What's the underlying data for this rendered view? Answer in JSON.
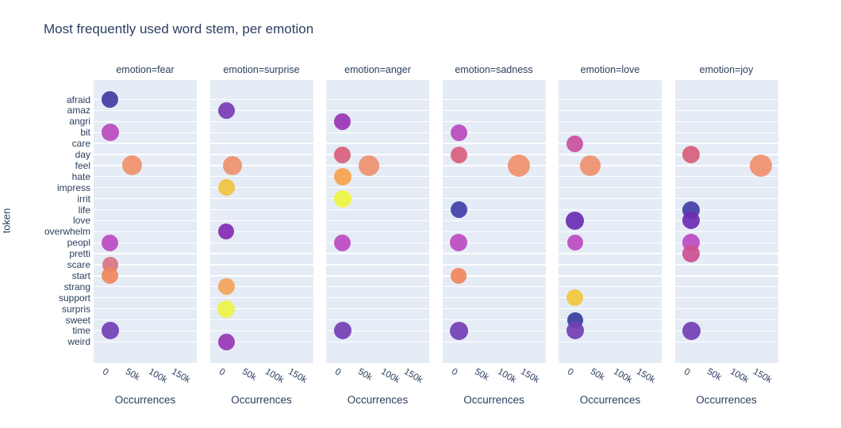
{
  "page": {
    "title": "Most frequently used word stem, per emotion"
  },
  "chart_data": {
    "type": "scatter",
    "title": "Most frequently used word stem, per emotion",
    "xlabel": "Occurrences",
    "ylabel": "token",
    "grid": "horizontal-only",
    "legend": "none",
    "plot_bg_color": "#e5ecf6",
    "grid_color": "#ffffff",
    "text_color": "#2a3f5f",
    "x_range": [
      -33000,
      191000
    ],
    "x_ticks": [
      {
        "label": "0",
        "value": 0
      },
      {
        "label": "50k",
        "value": 50000
      },
      {
        "label": "100k",
        "value": 100000
      },
      {
        "label": "150k",
        "value": 150000
      }
    ],
    "tokens": [
      "afraid",
      "amaz",
      "angri",
      "bit",
      "care",
      "day",
      "feel",
      "hate",
      "impress",
      "irrit",
      "life",
      "love",
      "overwhelm",
      "peopl",
      "pretti",
      "scare",
      "start",
      "strang",
      "support",
      "surpris",
      "sweet",
      "time",
      "weird"
    ],
    "facets": [
      {
        "label": "emotion=fear",
        "emotion": "fear",
        "points": [
          {
            "token": "afraid",
            "occurrences": 3000,
            "color": "#463ca4",
            "size": 21
          },
          {
            "token": "bit",
            "occurrences": 3000,
            "color": "#ba4abc",
            "size": 22
          },
          {
            "token": "feel",
            "occurrences": 51000,
            "color": "#f0916e",
            "size": 25
          },
          {
            "token": "peopl",
            "occurrences": 3000,
            "color": "#bc4bc2",
            "size": 21
          },
          {
            "token": "scare",
            "occurrences": 3000,
            "color": "#d97484",
            "size": 20
          },
          {
            "token": "start",
            "occurrences": 3000,
            "color": "#f0875d",
            "size": 21
          },
          {
            "token": "time",
            "occurrences": 3000,
            "color": "#7440b5",
            "size": 22
          }
        ]
      },
      {
        "label": "emotion=surprise",
        "emotion": "surprise",
        "points": [
          {
            "token": "amaz",
            "occurrences": 3000,
            "color": "#7a3cb5",
            "size": 21
          },
          {
            "token": "feel",
            "occurrences": 16000,
            "color": "#f0916e",
            "size": 24
          },
          {
            "token": "impress",
            "occurrences": 3000,
            "color": "#f2c341",
            "size": 21
          },
          {
            "token": "overwhelm",
            "occurrences": 3000,
            "color": "#872cb3",
            "size": 20
          },
          {
            "token": "strang",
            "occurrences": 3000,
            "color": "#f5a259",
            "size": 21
          },
          {
            "token": "surpris",
            "occurrences": 3000,
            "color": "#edf348",
            "size": 22
          },
          {
            "token": "weird",
            "occurrences": 3000,
            "color": "#9838b8",
            "size": 21
          }
        ]
      },
      {
        "label": "emotion=anger",
        "emotion": "anger",
        "points": [
          {
            "token": "angri",
            "occurrences": 3000,
            "color": "#9a35b5",
            "size": 21
          },
          {
            "token": "day",
            "occurrences": 3000,
            "color": "#d8607c",
            "size": 21
          },
          {
            "token": "feel",
            "occurrences": 60000,
            "color": "#f0916e",
            "size": 26
          },
          {
            "token": "hate",
            "occurrences": 3000,
            "color": "#f8a24e",
            "size": 22
          },
          {
            "token": "irrit",
            "occurrences": 3000,
            "color": "#eff442",
            "size": 22
          },
          {
            "token": "peopl",
            "occurrences": 3000,
            "color": "#bc4bc2",
            "size": 21
          },
          {
            "token": "time",
            "occurrences": 3000,
            "color": "#7440b5",
            "size": 22
          }
        ]
      },
      {
        "label": "emotion=sadness",
        "emotion": "sadness",
        "points": [
          {
            "token": "bit",
            "occurrences": 3000,
            "color": "#ba4abc",
            "size": 21
          },
          {
            "token": "day",
            "occurrences": 3000,
            "color": "#d8607c",
            "size": 21
          },
          {
            "token": "feel",
            "occurrences": 134000,
            "color": "#f0916e",
            "size": 28
          },
          {
            "token": "life",
            "occurrences": 3000,
            "color": "#4340a8",
            "size": 21
          },
          {
            "token": "peopl",
            "occurrences": 3000,
            "color": "#bc4bc2",
            "size": 22
          },
          {
            "token": "start",
            "occurrences": 3000,
            "color": "#f0875d",
            "size": 20
          },
          {
            "token": "time",
            "occurrences": 3000,
            "color": "#7440b5",
            "size": 23
          }
        ]
      },
      {
        "label": "emotion=love",
        "emotion": "love",
        "points": [
          {
            "token": "care",
            "occurrences": 3000,
            "color": "#c9519f",
            "size": 21
          },
          {
            "token": "feel",
            "occurrences": 37000,
            "color": "#f0916e",
            "size": 26
          },
          {
            "token": "love",
            "occurrences": 3000,
            "color": "#6c2eb3",
            "size": 23
          },
          {
            "token": "peopl",
            "occurrences": 3000,
            "color": "#bc4bc2",
            "size": 20
          },
          {
            "token": "support",
            "occurrences": 3000,
            "color": "#f3c83e",
            "size": 21
          },
          {
            "token": "sweet",
            "occurrences": 3000,
            "color": "#3a3f9c",
            "size": 20
          },
          {
            "token": "time",
            "occurrences": 3000,
            "color": "#7440b5",
            "size": 22
          }
        ]
      },
      {
        "label": "emotion=joy",
        "emotion": "joy",
        "points": [
          {
            "token": "day",
            "occurrences": 3000,
            "color": "#d8607c",
            "size": 22
          },
          {
            "token": "feel",
            "occurrences": 154000,
            "color": "#f0916e",
            "size": 28
          },
          {
            "token": "life",
            "occurrences": 3000,
            "color": "#4340a8",
            "size": 22
          },
          {
            "token": "love",
            "occurrences": 3000,
            "color": "#6c2eb3",
            "size": 22
          },
          {
            "token": "peopl",
            "occurrences": 3000,
            "color": "#bc4bc2",
            "size": 22
          },
          {
            "token": "pretti",
            "occurrences": 3000,
            "color": "#cc5191",
            "size": 22
          },
          {
            "token": "time",
            "occurrences": 3000,
            "color": "#7440b5",
            "size": 23
          }
        ]
      }
    ]
  }
}
